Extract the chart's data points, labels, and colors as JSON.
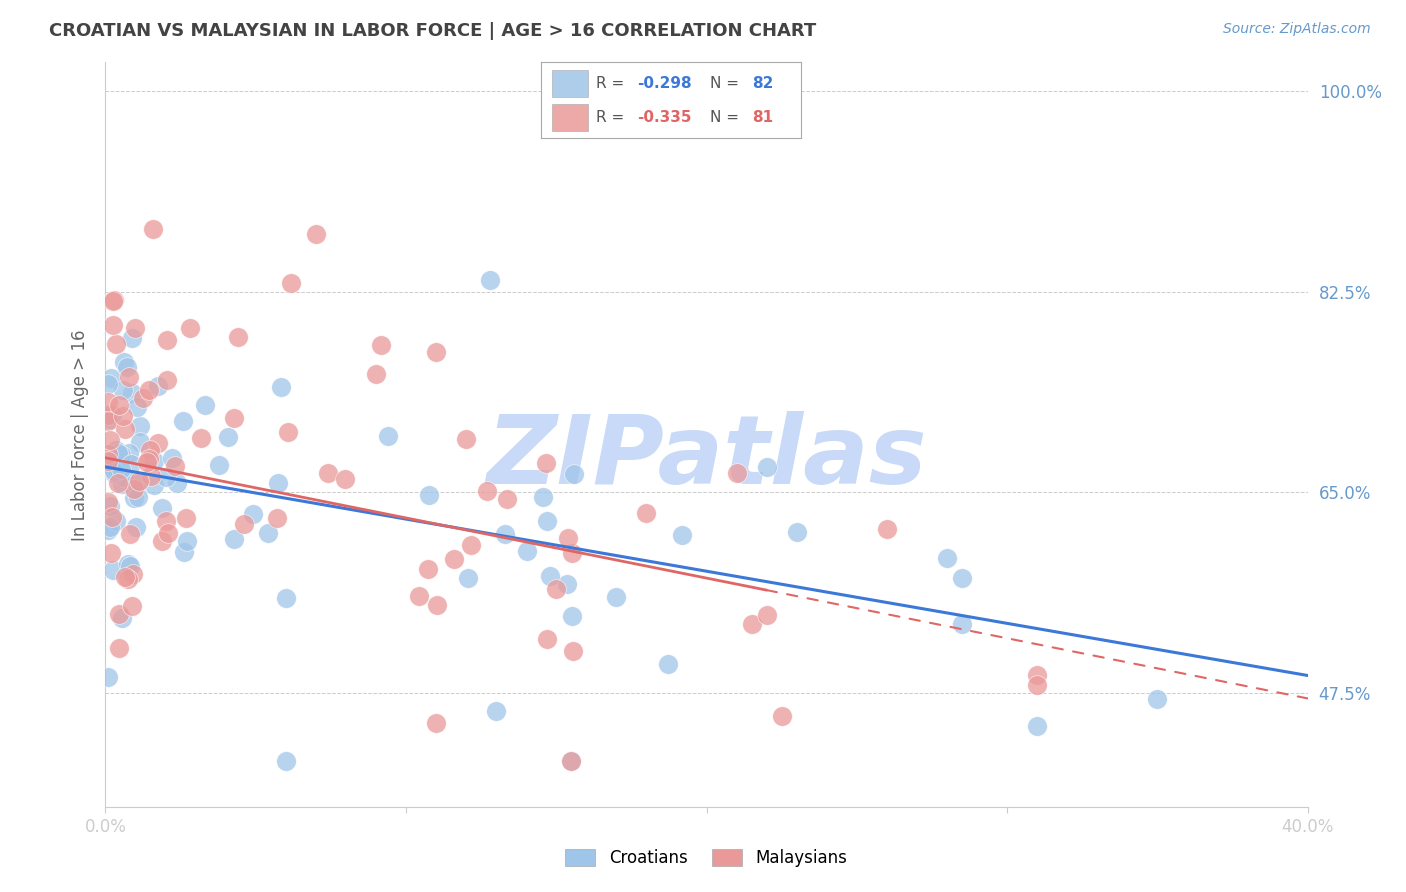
{
  "title": "CROATIAN VS MALAYSIAN IN LABOR FORCE | AGE > 16 CORRELATION CHART",
  "source_text": "Source: ZipAtlas.com",
  "ylabel": "In Labor Force | Age > 16",
  "x_min": 0.0,
  "x_max": 0.4,
  "y_min": 0.375,
  "y_max": 1.025,
  "y_ticks": [
    1.0,
    0.825,
    0.65,
    0.475
  ],
  "y_tick_labels": [
    "100.0%",
    "82.5%",
    "65.0%",
    "47.5%"
  ],
  "x_ticks": [
    0.0,
    0.1,
    0.2,
    0.3,
    0.4
  ],
  "croatian_R": -0.298,
  "croatian_N": 82,
  "malaysian_R": -0.335,
  "malaysian_N": 81,
  "croatian_color": "#9fc5e8",
  "malaysian_color": "#ea9999",
  "trendline_blue": "#3c78d8",
  "trendline_pink": "#e06666",
  "watermark_color": "#c9daf8",
  "background_color": "#ffffff",
  "grid_color": "#cccccc",
  "title_color": "#434343",
  "axis_label_color": "#666666",
  "right_axis_label_color": "#6699cc",
  "blue_trend_y0": 0.672,
  "blue_trend_y1": 0.49,
  "pink_trend_y0": 0.68,
  "pink_trend_y1": 0.47
}
